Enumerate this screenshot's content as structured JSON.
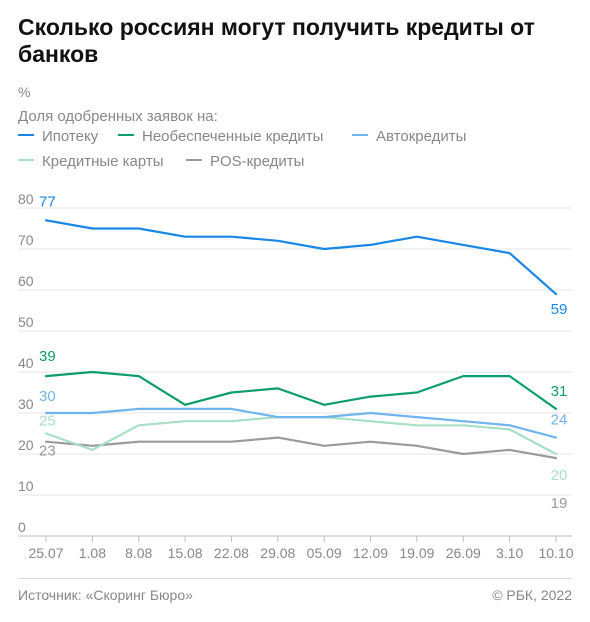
{
  "header": {
    "title": "Сколько россиян могут получить кредиты от банков",
    "unit": "%",
    "subtitle": "Доля одобренных заявок на:"
  },
  "footer": {
    "source": "Источник: «Скоринг Бюро»",
    "copyright": "© РБК, 2022"
  },
  "chart_data": {
    "type": "line",
    "title": "Сколько россиян могут получить кредиты от банков",
    "subtitle": "Доля одобренных заявок на:",
    "ylabel": "%",
    "xlabel": "",
    "ylim": [
      0,
      80
    ],
    "yticks": [
      0,
      10,
      20,
      30,
      40,
      50,
      60,
      70,
      80
    ],
    "grid": "horizontal",
    "legend_position": "top-left",
    "x": [
      "25.07",
      "1.08",
      "8.08",
      "15.08",
      "22.08",
      "29.08",
      "05.09",
      "12.09",
      "19.09",
      "26.09",
      "3.10",
      "10.10"
    ],
    "series": [
      {
        "name": "Ипотеку",
        "color": "#1a86e8",
        "values": [
          77,
          75,
          75,
          73,
          73,
          72,
          70,
          71,
          73,
          71,
          69,
          59
        ],
        "start_label": "77",
        "end_label": "59"
      },
      {
        "name": "Необеспеченные кредиты",
        "color": "#0d9d6b",
        "values": [
          39,
          40,
          39,
          32,
          35,
          36,
          32,
          34,
          35,
          39,
          39,
          31
        ],
        "start_label": "39",
        "end_label": "31"
      },
      {
        "name": "Автокредиты",
        "color": "#6fb4ee",
        "values": [
          30,
          30,
          31,
          31,
          31,
          29,
          29,
          30,
          29,
          28,
          27,
          24
        ],
        "start_label": "30",
        "end_label": "24"
      },
      {
        "name": "Кредитные карты",
        "color": "#a8dfc5",
        "values": [
          25,
          21,
          27,
          28,
          28,
          29,
          29,
          28,
          27,
          27,
          26,
          20
        ],
        "start_label": "25",
        "end_label": "20"
      },
      {
        "name": "POS-кредиты",
        "color": "#9a9a9a",
        "values": [
          23,
          22,
          23,
          23,
          23,
          24,
          22,
          23,
          22,
          20,
          21,
          19
        ],
        "start_label": "23",
        "end_label": "19"
      }
    ]
  }
}
